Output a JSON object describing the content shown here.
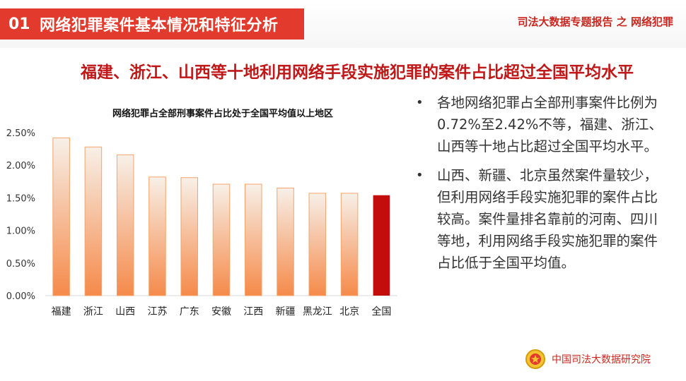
{
  "header": {
    "section_number": "01",
    "section_title": "网络犯罪案件基本情况和特征分析",
    "report_tag": "司法大数据专题报告 之 网络犯罪"
  },
  "headline": "福建、浙江、山西等十地利用网络手段实施犯罪的案件占比超过全国平均水平",
  "chart_data": {
    "type": "bar",
    "title": "网络犯罪占全部刑事案件占比处于全国平均值以上地区",
    "categories": [
      "福建",
      "浙江",
      "山西",
      "江苏",
      "广东",
      "安徽",
      "江西",
      "新疆",
      "黑龙江",
      "北京",
      "全国"
    ],
    "values": [
      2.42,
      2.28,
      2.16,
      1.82,
      1.81,
      1.71,
      1.71,
      1.65,
      1.57,
      1.57,
      1.54
    ],
    "yticks": [
      "0.00%",
      "0.50%",
      "1.00%",
      "1.50%",
      "2.00%",
      "2.50%"
    ],
    "ylim": [
      0,
      2.5
    ],
    "grid": false,
    "highlight_category": "全国",
    "colors": {
      "regional_bar_top": "#f7f0e8",
      "regional_bar_bottom": "#f58a4a",
      "regional_bar_border": "#f5a36a",
      "national_bar": "#c30d0d",
      "axis": "#d9d9d9"
    }
  },
  "bullets": [
    "各地网络犯罪占全部刑事案件比例为0.72%至2.42%不等，福建、浙江、山西等十地占比超过全国平均水平。",
    "山西、新疆、北京虽然案件量较少，但利用网络手段实施犯罪的案件占比较高。案件量排名靠前的河南、四川等地，利用网络手段实施犯罪的案件占比低于全国平均值。"
  ],
  "footer": {
    "emblem_icon": "court-emblem-icon",
    "organization": "中国司法大数据研究院"
  }
}
